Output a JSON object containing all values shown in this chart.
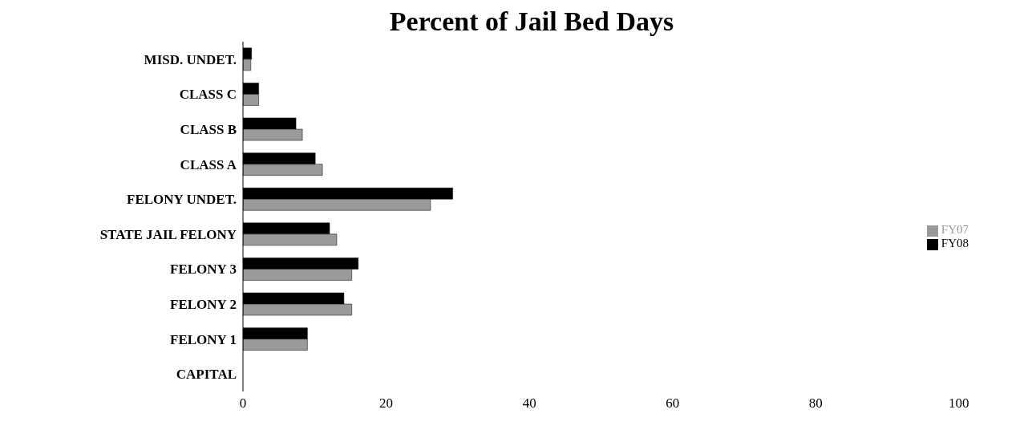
{
  "chart_data": {
    "type": "bar",
    "orientation": "horizontal",
    "title": "Percent of Jail Bed Days",
    "categories": [
      "MISD. UNDET.",
      "CLASS C",
      "CLASS B",
      "CLASS A",
      "FELONY UNDET.",
      "STATE JAIL FELONY",
      "FELONY 3",
      "FELONY 2",
      "FELONY 1",
      "CAPITAL"
    ],
    "series": [
      {
        "name": "FY08",
        "color": "#000000",
        "values": [
          1.2,
          2.2,
          7.4,
          10.1,
          29.3,
          12.1,
          16.1,
          14.1,
          9,
          0
        ]
      },
      {
        "name": "FY07",
        "color": "#9a9a9a",
        "values": [
          1.1,
          2.2,
          8.3,
          11.1,
          26.2,
          13.1,
          15.2,
          15.2,
          9,
          0
        ]
      }
    ],
    "xlim": [
      0,
      100
    ],
    "xticks": [
      0,
      20,
      40,
      60,
      80,
      100
    ],
    "grid": false,
    "legend": "right"
  }
}
